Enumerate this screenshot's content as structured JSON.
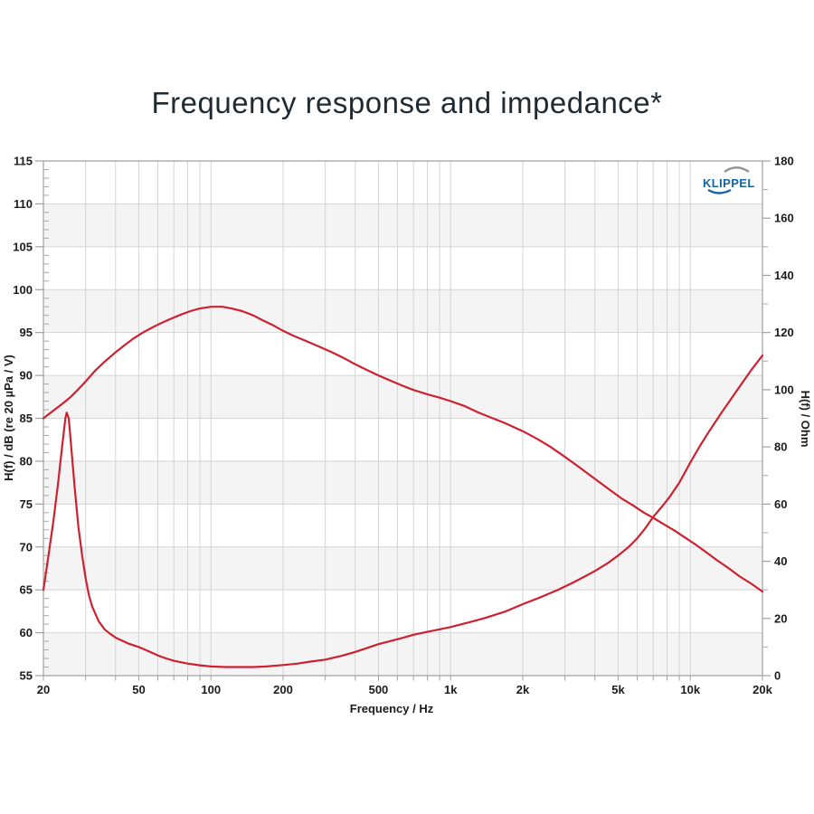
{
  "title": "Frequency response and impedance*",
  "logo": {
    "text": "KLIPPEL",
    "color_blue": "#1565a5",
    "color_gray": "#939598"
  },
  "colors": {
    "curve_red": "#cd2130",
    "band_gray": "#f4f4f4",
    "grid": "#d4d4d4",
    "frame": "#a0a0a0",
    "minor_tick": "#a8a8a8",
    "label": "#1c1c1c"
  },
  "chart_data": {
    "type": "line",
    "title": "Frequency response and impedance*",
    "xlabel": "Frequency / Hz",
    "ylabel_left": "H(f) / dB (re 20 µPa / V)",
    "ylabel_right": "H(f) / Ohm",
    "x_scale": "log",
    "x_range": [
      20,
      20000
    ],
    "y_left_range": [
      55,
      115
    ],
    "y_right_range": [
      0,
      180
    ],
    "grid": true,
    "legend_position": "none",
    "x_ticks": [
      {
        "f": 20,
        "label": "20"
      },
      {
        "f": 50,
        "label": "50"
      },
      {
        "f": 100,
        "label": "100"
      },
      {
        "f": 200,
        "label": "200"
      },
      {
        "f": 500,
        "label": "500"
      },
      {
        "f": 1000,
        "label": "1k"
      },
      {
        "f": 2000,
        "label": "2k"
      },
      {
        "f": 5000,
        "label": "5k"
      },
      {
        "f": 10000,
        "label": "10k"
      },
      {
        "f": 20000,
        "label": "20k"
      }
    ],
    "x_gridlines": [
      20,
      30,
      40,
      50,
      60,
      70,
      80,
      90,
      100,
      200,
      300,
      400,
      500,
      600,
      700,
      800,
      900,
      1000,
      2000,
      3000,
      4000,
      5000,
      6000,
      7000,
      8000,
      9000,
      10000,
      20000
    ],
    "y_left_ticks": [
      115,
      110,
      105,
      100,
      95,
      90,
      85,
      80,
      75,
      70,
      65,
      60,
      55
    ],
    "y_left_minor_step": 1,
    "y_right_ticks": [
      180,
      160,
      140,
      120,
      100,
      80,
      60,
      40,
      20,
      0
    ],
    "y_right_minor_step": 10,
    "shaded_bands_db": [
      [
        110,
        105
      ],
      [
        100,
        95
      ],
      [
        90,
        85
      ],
      [
        80,
        75
      ],
      [
        70,
        65
      ],
      [
        60,
        55
      ]
    ],
    "series": [
      {
        "name": "SPL frequency response",
        "axis": "left",
        "unit": "dB",
        "color": "#cd2130",
        "points": [
          [
            20,
            85.0
          ],
          [
            22,
            85.9
          ],
          [
            24,
            86.7
          ],
          [
            26,
            87.5
          ],
          [
            28,
            88.4
          ],
          [
            30,
            89.3
          ],
          [
            33,
            90.6
          ],
          [
            36,
            91.6
          ],
          [
            40,
            92.7
          ],
          [
            44,
            93.6
          ],
          [
            48,
            94.4
          ],
          [
            52,
            95.0
          ],
          [
            57,
            95.6
          ],
          [
            62,
            96.1
          ],
          [
            68,
            96.6
          ],
          [
            75,
            97.1
          ],
          [
            82,
            97.5
          ],
          [
            90,
            97.8
          ],
          [
            100,
            98.0
          ],
          [
            112,
            98.0
          ],
          [
            122,
            97.8
          ],
          [
            135,
            97.5
          ],
          [
            150,
            97.0
          ],
          [
            165,
            96.4
          ],
          [
            180,
            95.9
          ],
          [
            200,
            95.2
          ],
          [
            222,
            94.6
          ],
          [
            250,
            94.0
          ],
          [
            280,
            93.4
          ],
          [
            320,
            92.7
          ],
          [
            360,
            92.0
          ],
          [
            400,
            91.3
          ],
          [
            450,
            90.6
          ],
          [
            500,
            90.0
          ],
          [
            560,
            89.4
          ],
          [
            630,
            88.8
          ],
          [
            700,
            88.3
          ],
          [
            800,
            87.8
          ],
          [
            900,
            87.4
          ],
          [
            1000,
            87.0
          ],
          [
            1150,
            86.4
          ],
          [
            1300,
            85.7
          ],
          [
            1500,
            85.0
          ],
          [
            1700,
            84.4
          ],
          [
            2000,
            83.5
          ],
          [
            2300,
            82.6
          ],
          [
            2600,
            81.7
          ],
          [
            3000,
            80.5
          ],
          [
            3400,
            79.4
          ],
          [
            3800,
            78.4
          ],
          [
            4200,
            77.5
          ],
          [
            4700,
            76.5
          ],
          [
            5200,
            75.6
          ],
          [
            5800,
            74.8
          ],
          [
            6400,
            74.0
          ],
          [
            7000,
            73.4
          ],
          [
            7800,
            72.6
          ],
          [
            8600,
            71.9
          ],
          [
            9500,
            71.1
          ],
          [
            10500,
            70.3
          ],
          [
            11500,
            69.5
          ],
          [
            13000,
            68.4
          ],
          [
            14500,
            67.5
          ],
          [
            16000,
            66.6
          ],
          [
            18000,
            65.7
          ],
          [
            20000,
            64.8
          ]
        ]
      },
      {
        "name": "Impedance",
        "axis": "right",
        "unit": "Ohm",
        "color": "#cd2130",
        "points": [
          [
            20,
            30
          ],
          [
            21,
            42
          ],
          [
            22,
            54
          ],
          [
            23,
            67
          ],
          [
            24,
            81
          ],
          [
            24.7,
            90
          ],
          [
            25,
            92
          ],
          [
            25.5,
            90
          ],
          [
            26,
            82
          ],
          [
            27,
            66
          ],
          [
            28,
            52
          ],
          [
            29,
            42
          ],
          [
            30,
            34
          ],
          [
            31,
            28
          ],
          [
            32,
            24
          ],
          [
            34,
            19
          ],
          [
            36,
            16.2
          ],
          [
            38,
            14.6
          ],
          [
            40,
            13.3
          ],
          [
            45,
            11.3
          ],
          [
            50,
            10.0
          ],
          [
            55,
            8.5
          ],
          [
            60,
            7.1
          ],
          [
            65,
            6.0
          ],
          [
            70,
            5.2
          ],
          [
            80,
            4.2
          ],
          [
            90,
            3.6
          ],
          [
            100,
            3.2
          ],
          [
            115,
            3.0
          ],
          [
            130,
            3.0
          ],
          [
            150,
            3.0
          ],
          [
            170,
            3.2
          ],
          [
            200,
            3.7
          ],
          [
            230,
            4.2
          ],
          [
            260,
            4.9
          ],
          [
            300,
            5.6
          ],
          [
            350,
            6.9
          ],
          [
            400,
            8.3
          ],
          [
            450,
            9.7
          ],
          [
            500,
            11.0
          ],
          [
            560,
            12.1
          ],
          [
            630,
            13.2
          ],
          [
            700,
            14.3
          ],
          [
            800,
            15.3
          ],
          [
            900,
            16.2
          ],
          [
            1000,
            17.0
          ],
          [
            1200,
            18.7
          ],
          [
            1400,
            20.2
          ],
          [
            1700,
            22.5
          ],
          [
            2000,
            25.0
          ],
          [
            2400,
            27.6
          ],
          [
            2800,
            30.0
          ],
          [
            3200,
            32.3
          ],
          [
            3600,
            34.5
          ],
          [
            4000,
            36.6
          ],
          [
            4500,
            39.2
          ],
          [
            5000,
            42.0
          ],
          [
            5500,
            44.8
          ],
          [
            6000,
            48.0
          ],
          [
            6500,
            51.6
          ],
          [
            7000,
            55.5
          ],
          [
            7600,
            59.0
          ],
          [
            8200,
            62.5
          ],
          [
            9000,
            67.5
          ],
          [
            10000,
            74.5
          ],
          [
            11000,
            80.5
          ],
          [
            12000,
            85.5
          ],
          [
            13500,
            92.0
          ],
          [
            15000,
            97.5
          ],
          [
            16500,
            102.5
          ],
          [
            18000,
            107.0
          ],
          [
            20000,
            112.0
          ]
        ]
      }
    ]
  }
}
